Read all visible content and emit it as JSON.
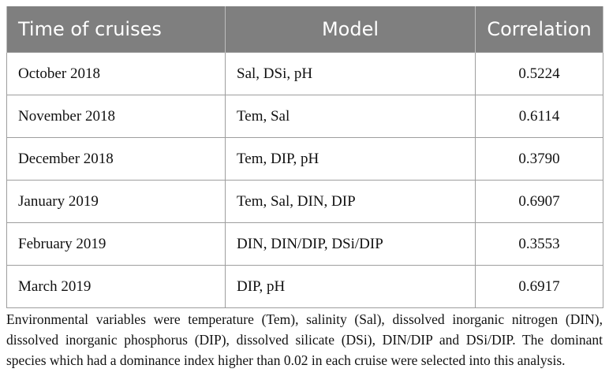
{
  "table": {
    "header": [
      "Time of cruises",
      "Model",
      "Correlation"
    ],
    "rows": [
      [
        "October 2018",
        "Sal, DSi, pH",
        "0.5224"
      ],
      [
        "November 2018",
        "Tem, Sal",
        "0.6114"
      ],
      [
        "December 2018",
        "Tem, DIP, pH",
        "0.3790"
      ],
      [
        "January 2019",
        "Tem, Sal, DIN, DIP",
        "0.6907"
      ],
      [
        "February 2019",
        "DIN, DIN/DIP, DSi/DIP",
        "0.3553"
      ],
      [
        "March 2019",
        "DIP, pH",
        "0.6917"
      ]
    ],
    "footnote": "Environmental variables were temperature (Tem), salinity (Sal), dissolved inorganic nitrogen (DIN), dissolved inorganic phosphorus (DIP), dissolved silicate (DSi), DIN/DIP and DSi/DIP. The dominant species which had a dominance index higher than 0.02 in each cruise were selected into this analysis."
  }
}
